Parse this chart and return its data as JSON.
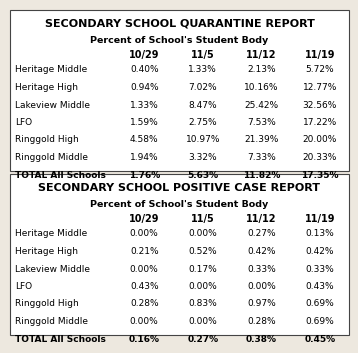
{
  "title1": "SECONDARY SCHOOL QUARANTINE REPORT",
  "title2": "SECONDARY SCHOOL POSITIVE CASE REPORT",
  "subtitle": "Percent of School's Student Body",
  "col_headers": [
    "10/29",
    "11/5",
    "11/12",
    "11/19"
  ],
  "row_labels": [
    "Heritage Middle",
    "Heritage High",
    "Lakeview Middle",
    "LFO",
    "Ringgold High",
    "Ringgold Middle",
    "TOTAL All Schools"
  ],
  "quarantine_data": [
    [
      "0.40%",
      "1.33%",
      "2.13%",
      "5.72%"
    ],
    [
      "0.94%",
      "7.02%",
      "10.16%",
      "12.77%"
    ],
    [
      "1.33%",
      "8.47%",
      "25.42%",
      "32.56%"
    ],
    [
      "1.59%",
      "2.75%",
      "7.53%",
      "17.22%"
    ],
    [
      "4.58%",
      "10.97%",
      "21.39%",
      "20.00%"
    ],
    [
      "1.94%",
      "3.32%",
      "7.33%",
      "20.33%"
    ],
    [
      "1.76%",
      "5.63%",
      "11.82%",
      "17.35%"
    ]
  ],
  "positive_data": [
    [
      "0.00%",
      "0.00%",
      "0.27%",
      "0.13%"
    ],
    [
      "0.21%",
      "0.52%",
      "0.42%",
      "0.42%"
    ],
    [
      "0.00%",
      "0.17%",
      "0.33%",
      "0.33%"
    ],
    [
      "0.43%",
      "0.00%",
      "0.00%",
      "0.43%"
    ],
    [
      "0.28%",
      "0.83%",
      "0.97%",
      "0.69%"
    ],
    [
      "0.00%",
      "0.00%",
      "0.28%",
      "0.69%"
    ],
    [
      "0.16%",
      "0.27%",
      "0.38%",
      "0.45%"
    ]
  ],
  "bg_color": "#ede8df",
  "border_color": "#444444",
  "title_fontsize": 8.0,
  "subtitle_fontsize": 6.8,
  "header_fontsize": 7.0,
  "cell_fontsize": 6.5
}
